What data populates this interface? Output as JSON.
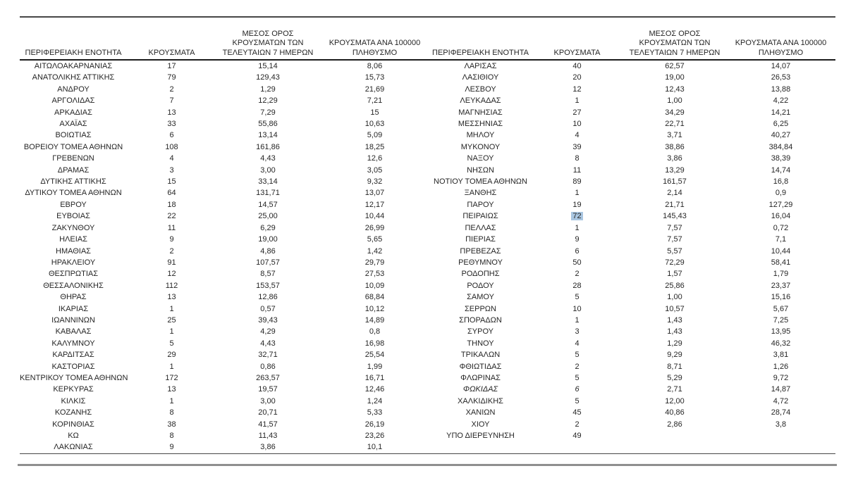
{
  "table": {
    "column_headers": {
      "region": "ΠΕΡΙΦΕΡΕΙΑΚΗ ΕΝΟΤΗΤΑ",
      "cases": "ΚΡΟΥΣΜΑΤΑ",
      "avg_7day": "ΜΕΣΟΣ ΟΡΟΣ\nΚΡΟΥΣΜΑΤΩΝ ΤΩΝ\nΤΕΛΕΥΤΑΙΩΝ 7 ΗΜΕΡΩΝ",
      "per_100k": "ΚΡΟΥΣΜΑΤΑ ΑΝΑ 100000\nΠΛΗΘΥΣΜΟ"
    },
    "highlight_color": "#a9c6e1",
    "left_rows": [
      {
        "region": "ΑΙΤΩΛΟΑΚΑΡΝΑΝΙΑΣ",
        "cases": "17",
        "avg_7day": "15,14",
        "per_100k": "8,06"
      },
      {
        "region": "ΑΝΑΤΟΛΙΚΗΣ ΑΤΤΙΚΗΣ",
        "cases": "79",
        "avg_7day": "129,43",
        "per_100k": "15,73"
      },
      {
        "region": "ΑΝΔΡΟΥ",
        "cases": "2",
        "avg_7day": "1,29",
        "per_100k": "21,69"
      },
      {
        "region": "ΑΡΓΟΛΙΔΑΣ",
        "cases": "7",
        "avg_7day": "12,29",
        "per_100k": "7,21"
      },
      {
        "region": "ΑΡΚΑΔΙΑΣ",
        "cases": "13",
        "avg_7day": "7,29",
        "per_100k": "15"
      },
      {
        "region": "ΑΧΑΪΑΣ",
        "cases": "33",
        "avg_7day": "55,86",
        "per_100k": "10,63"
      },
      {
        "region": "ΒΟΙΩΤΙΑΣ",
        "cases": "6",
        "avg_7day": "13,14",
        "per_100k": "5,09"
      },
      {
        "region": "ΒΟΡΕΙΟΥ ΤΟΜΕΑ ΑΘΗΝΩΝ",
        "cases": "108",
        "avg_7day": "161,86",
        "per_100k": "18,25"
      },
      {
        "region": "ΓΡΕΒΕΝΩΝ",
        "cases": "4",
        "avg_7day": "4,43",
        "per_100k": "12,6"
      },
      {
        "region": "ΔΡΑΜΑΣ",
        "cases": "3",
        "avg_7day": "3,00",
        "per_100k": "3,05"
      },
      {
        "region": "ΔΥΤΙΚΗΣ ΑΤΤΙΚΗΣ",
        "cases": "15",
        "avg_7day": "33,14",
        "per_100k": "9,32"
      },
      {
        "region": "ΔΥΤΙΚΟΥ ΤΟΜΕΑ ΑΘΗΝΩΝ",
        "cases": "64",
        "avg_7day": "131,71",
        "per_100k": "13,07"
      },
      {
        "region": "ΕΒΡΟΥ",
        "cases": "18",
        "avg_7day": "14,57",
        "per_100k": "12,17"
      },
      {
        "region": "ΕΥΒΟΙΑΣ",
        "cases": "22",
        "avg_7day": "25,00",
        "per_100k": "10,44"
      },
      {
        "region": "ΖΑΚΥΝΘΟΥ",
        "cases": "11",
        "avg_7day": "6,29",
        "per_100k": "26,99"
      },
      {
        "region": "ΗΛΕΙΑΣ",
        "cases": "9",
        "avg_7day": "19,00",
        "per_100k": "5,65"
      },
      {
        "region": "ΗΜΑΘΙΑΣ",
        "cases": "2",
        "avg_7day": "4,86",
        "per_100k": "1,42"
      },
      {
        "region": "ΗΡΑΚΛΕΙΟΥ",
        "cases": "91",
        "avg_7day": "107,57",
        "per_100k": "29,79"
      },
      {
        "region": "ΘΕΣΠΡΩΤΙΑΣ",
        "cases": "12",
        "avg_7day": "8,57",
        "per_100k": "27,53"
      },
      {
        "region": "ΘΕΣΣΑΛΟΝΙΚΗΣ",
        "cases": "112",
        "avg_7day": "153,57",
        "per_100k": "10,09"
      },
      {
        "region": "ΘΗΡΑΣ",
        "cases": "13",
        "avg_7day": "12,86",
        "per_100k": "68,84"
      },
      {
        "region": "ΙΚΑΡΙΑΣ",
        "cases": "1",
        "avg_7day": "0,57",
        "per_100k": "10,12"
      },
      {
        "region": "ΙΩΑΝΝΙΝΩΝ",
        "cases": "25",
        "avg_7day": "39,43",
        "per_100k": "14,89"
      },
      {
        "region": "ΚΑΒΑΛΑΣ",
        "cases": "1",
        "avg_7day": "4,29",
        "per_100k": "0,8"
      },
      {
        "region": "ΚΑΛΥΜΝΟΥ",
        "cases": "5",
        "avg_7day": "4,43",
        "per_100k": "16,98"
      },
      {
        "region": "ΚΑΡΔΙΤΣΑΣ",
        "cases": "29",
        "avg_7day": "32,71",
        "per_100k": "25,54"
      },
      {
        "region": "ΚΑΣΤΟΡΙΑΣ",
        "cases": "1",
        "avg_7day": "0,86",
        "per_100k": "1,99"
      },
      {
        "region": "ΚΕΝΤΡΙΚΟΥ ΤΟΜΕΑ ΑΘΗΝΩΝ",
        "cases": "172",
        "avg_7day": "263,57",
        "per_100k": "16,71"
      },
      {
        "region": "ΚΕΡΚΥΡΑΣ",
        "cases": "13",
        "avg_7day": "19,57",
        "per_100k": "12,46"
      },
      {
        "region": "ΚΙΛΚΙΣ",
        "cases": "1",
        "avg_7day": "3,00",
        "per_100k": "1,24"
      },
      {
        "region": "ΚΟΖΑΝΗΣ",
        "cases": "8",
        "avg_7day": "20,71",
        "per_100k": "5,33"
      },
      {
        "region": "ΚΟΡΙΝΘΙΑΣ",
        "cases": "38",
        "avg_7day": "41,57",
        "per_100k": "26,19"
      },
      {
        "region": "ΚΩ",
        "cases": "8",
        "avg_7day": "11,43",
        "per_100k": "23,26"
      },
      {
        "region": "ΛΑΚΩΝΙΑΣ",
        "cases": "9",
        "avg_7day": "3,86",
        "per_100k": "10,1"
      }
    ],
    "right_rows": [
      {
        "region": "ΛΑΡΙΣΑΣ",
        "cases": "40",
        "avg_7day": "62,57",
        "per_100k": "14,07"
      },
      {
        "region": "ΛΑΣΙΘΙΟΥ",
        "cases": "20",
        "avg_7day": "19,00",
        "per_100k": "26,53"
      },
      {
        "region": "ΛΕΣΒΟΥ",
        "cases": "12",
        "avg_7day": "12,43",
        "per_100k": "13,88"
      },
      {
        "region": "ΛΕΥΚΑΔΑΣ",
        "cases": "1",
        "avg_7day": "1,00",
        "per_100k": "4,22"
      },
      {
        "region": "ΜΑΓΝΗΣΙΑΣ",
        "cases": "27",
        "avg_7day": "34,29",
        "per_100k": "14,21"
      },
      {
        "region": "ΜΕΣΣΗΝΙΑΣ",
        "cases": "10",
        "avg_7day": "22,71",
        "per_100k": "6,25"
      },
      {
        "region": "ΜΗΛΟΥ",
        "cases": "4",
        "avg_7day": "3,71",
        "per_100k": "40,27"
      },
      {
        "region": "ΜΥΚΟΝΟΥ",
        "cases": "39",
        "avg_7day": "38,86",
        "per_100k": "384,84"
      },
      {
        "region": "ΝΑΞΟΥ",
        "cases": "8",
        "avg_7day": "3,86",
        "per_100k": "38,39"
      },
      {
        "region": "ΝΗΣΩΝ",
        "cases": "11",
        "avg_7day": "13,29",
        "per_100k": "14,74"
      },
      {
        "region": "ΝΟΤΙΟΥ ΤΟΜΕΑ ΑΘΗΝΩΝ",
        "cases": "89",
        "avg_7day": "161,57",
        "per_100k": "16,8"
      },
      {
        "region": "ΞΑΝΘΗΣ",
        "cases": "1",
        "avg_7day": "2,14",
        "per_100k": "0,9"
      },
      {
        "region": "ΠΑΡΟΥ",
        "cases": "19",
        "avg_7day": "21,71",
        "per_100k": "127,29"
      },
      {
        "region": "ΠΕΙΡΑΙΩΣ",
        "cases": "72",
        "avg_7day": "145,43",
        "per_100k": "16,04",
        "cases_highlighted": true
      },
      {
        "region": "ΠΕΛΛΑΣ",
        "cases": "1",
        "avg_7day": "7,57",
        "per_100k": "0,72"
      },
      {
        "region": "ΠΙΕΡΙΑΣ",
        "cases": "9",
        "avg_7day": "7,57",
        "per_100k": "7,1"
      },
      {
        "region": "ΠΡΕΒΕΖΑΣ",
        "cases": "6",
        "avg_7day": "5,57",
        "per_100k": "10,44"
      },
      {
        "region": "ΡΕΘΥΜΝΟΥ",
        "cases": "50",
        "avg_7day": "72,29",
        "per_100k": "58,41"
      },
      {
        "region": "ΡΟΔΟΠΗΣ",
        "cases": "2",
        "avg_7day": "1,57",
        "per_100k": "1,79"
      },
      {
        "region": "ΡΟΔΟΥ",
        "cases": "28",
        "avg_7day": "25,86",
        "per_100k": "23,37"
      },
      {
        "region": "ΣΑΜΟΥ",
        "cases": "5",
        "avg_7day": "1,00",
        "per_100k": "15,16"
      },
      {
        "region": "ΣΕΡΡΩΝ",
        "cases": "10",
        "avg_7day": "10,57",
        "per_100k": "5,67"
      },
      {
        "region": "ΣΠΟΡΑΔΩΝ",
        "cases": "1",
        "avg_7day": "1,43",
        "per_100k": "7,25"
      },
      {
        "region": "ΣΥΡΟΥ",
        "cases": "3",
        "avg_7day": "1,43",
        "per_100k": "13,95"
      },
      {
        "region": "ΤΗΝΟΥ",
        "cases": "4",
        "avg_7day": "1,29",
        "per_100k": "46,32"
      },
      {
        "region": "ΤΡΙΚΑΛΩΝ",
        "cases": "5",
        "avg_7day": "9,29",
        "per_100k": "3,81"
      },
      {
        "region": "ΦΘΙΩΤΙΔΑΣ",
        "cases": "2",
        "avg_7day": "8,71",
        "per_100k": "1,26"
      },
      {
        "region": "ΦΛΩΡΙΝΑΣ",
        "cases": "5",
        "avg_7day": "5,29",
        "per_100k": "9,72"
      },
      {
        "region": "ΦΩΚΙΔΑΣ",
        "cases": "6",
        "avg_7day": "2,71",
        "per_100k": "14,87",
        "italic": true
      },
      {
        "region": "ΧΑΛΚΙΔΙΚΗΣ",
        "cases": "5",
        "avg_7day": "12,00",
        "per_100k": "4,72"
      },
      {
        "region": "ΧΑΝΙΩΝ",
        "cases": "45",
        "avg_7day": "40,86",
        "per_100k": "28,74"
      },
      {
        "region": "ΧΙΟΥ",
        "cases": "2",
        "avg_7day": "2,86",
        "per_100k": "3,8"
      },
      {
        "region": "ΥΠΟ ΔΙΕΡΕΥΝΗΣΗ",
        "cases": "49",
        "avg_7day": "",
        "per_100k": ""
      }
    ]
  }
}
